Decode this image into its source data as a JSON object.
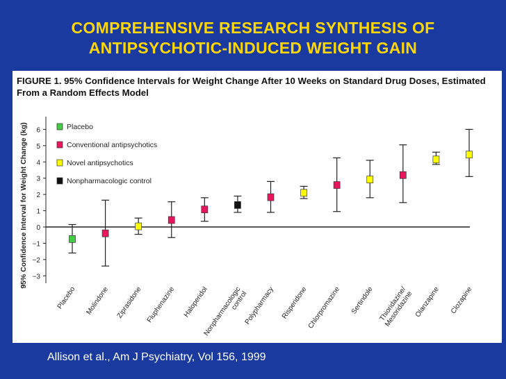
{
  "slide": {
    "title_line1": "COMPREHENSIVE RESEARCH SYNTHESIS OF",
    "title_line2": "ANTIPSYCHOTIC-INDUCED WEIGHT GAIN",
    "citation": "Allison et al., Am J Psychiatry, Vol 156, 1999",
    "colors": {
      "background": "#1a3aa0",
      "title": "#ffd700"
    }
  },
  "chart_data": {
    "type": "scatter",
    "caption_prefix": "FIGURE 1.",
    "caption": "95% Confidence Intervals for Weight Change After 10 Weeks on Standard Drug Doses, Estimated From a Random Effects Model",
    "ylabel": "95% Confidence Interval for Weight Change (kg)",
    "ylim": [
      -3.2,
      6.7
    ],
    "yticks": [
      "-3",
      "-2",
      "-1",
      "0",
      "1",
      "2",
      "3",
      "4",
      "5",
      "6"
    ],
    "categories": [
      "Placebo",
      "Molindone",
      "Ziprasidone",
      "Fluphenazine",
      "Haloperidol",
      "Nonpharmacologic control",
      "Polypharmacy",
      "Risperidone",
      "Chlorpromazine",
      "Sertindole",
      "Thioridazine/ Mesoridazine",
      "Olanzapine",
      "Clozapine"
    ],
    "tick_labels": [
      [
        "Placebo"
      ],
      [
        "Molindone"
      ],
      [
        "Ziprasidone"
      ],
      [
        "Fluphenazine"
      ],
      [
        "Haloperidol"
      ],
      [
        "Nonpharmacologic",
        "control"
      ],
      [
        "Polypharmacy"
      ],
      [
        "Risperidone"
      ],
      [
        "Chlorpromazine"
      ],
      [
        "Sertindole"
      ],
      [
        "Thioridazine/",
        "Mesoridazine"
      ],
      [
        "Olanzapine"
      ],
      [
        "Clozapine"
      ]
    ],
    "groups": [
      "placebo",
      "conventional",
      "novel",
      "conventional",
      "conventional",
      "nonpharm",
      "conventional",
      "novel",
      "conventional",
      "novel",
      "conventional",
      "novel",
      "novel"
    ],
    "point_estimates": [
      -0.74,
      -0.39,
      0.04,
      0.43,
      1.08,
      1.35,
      1.83,
      2.1,
      2.58,
      2.92,
      3.19,
      4.15,
      4.45
    ],
    "ci_lower": [
      -1.6,
      -2.4,
      -0.45,
      -0.65,
      0.35,
      0.9,
      0.9,
      1.75,
      0.95,
      1.8,
      1.5,
      3.85,
      3.1
    ],
    "ci_upper": [
      0.15,
      1.65,
      0.55,
      1.55,
      1.8,
      1.9,
      2.8,
      2.5,
      4.25,
      4.1,
      5.05,
      4.6,
      6.0
    ],
    "legend": [
      {
        "key": "placebo",
        "label": "Placebo",
        "color": "#44cc44"
      },
      {
        "key": "conventional",
        "label": "Conventional antipsychotics",
        "color": "#e8175d"
      },
      {
        "key": "novel",
        "label": "Novel antipsychotics",
        "color": "#ffff00"
      },
      {
        "key": "nonpharm",
        "label": "Nonpharmacologic control",
        "color": "#111111"
      }
    ],
    "legend_position": "top-left",
    "zero_line": true
  }
}
